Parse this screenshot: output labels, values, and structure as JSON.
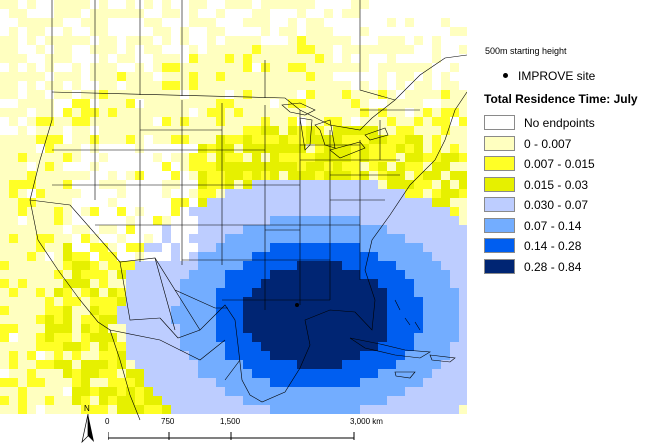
{
  "legend": {
    "subtitle": "500m starting height",
    "site_label": "IMPROVE site",
    "title": "Total Residence Time: July",
    "classes": [
      {
        "label": "No endpoints",
        "color": "#ffffff"
      },
      {
        "label": "0 - 0.007",
        "color": "#ffffc0"
      },
      {
        "label": "0.007 - 0.015",
        "color": "#ffff26"
      },
      {
        "label": "0.015 - 0.03",
        "color": "#e6f000"
      },
      {
        "label": "0.030 - 0.07",
        "color": "#bdcdff"
      },
      {
        "label": "0.07 - 0.14",
        "color": "#73adff"
      },
      {
        "label": "0.14 - 0.28",
        "color": "#005ef0"
      },
      {
        "label": "0.28 - 0.84",
        "color": "#002573"
      }
    ]
  },
  "scale": {
    "ticks": [
      "0",
      "750",
      "1,500",
      "3,000 km"
    ]
  },
  "north_arrow": {
    "label": "N"
  },
  "colors": {
    "boundary": "#000000",
    "coast": "#606060"
  }
}
